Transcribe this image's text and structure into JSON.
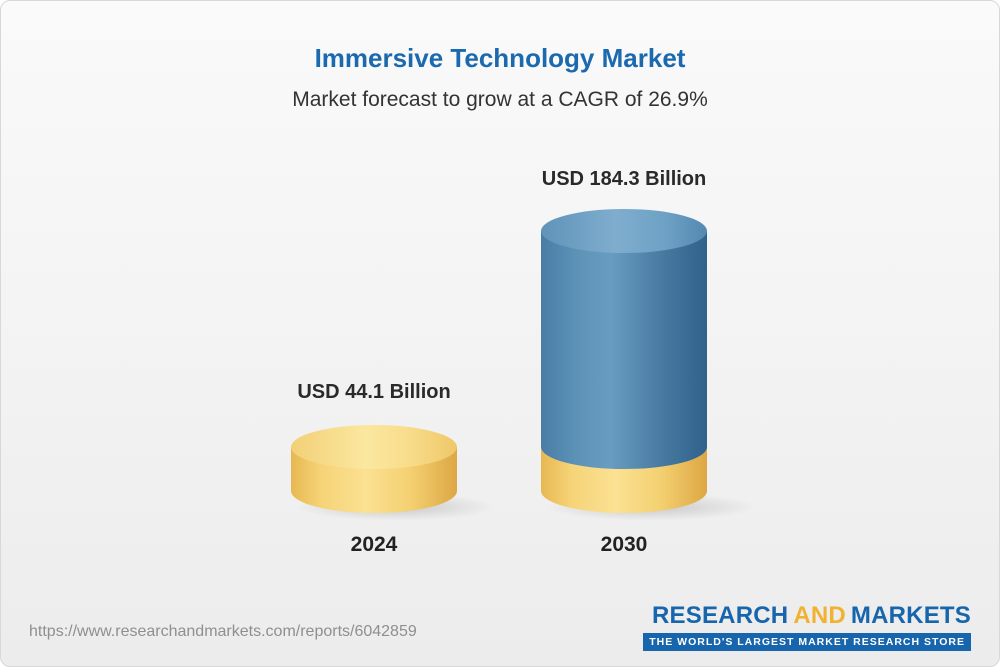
{
  "header": {
    "title": "Immersive Technology Market",
    "subtitle": "Market forecast to grow at a CAGR of 26.9%"
  },
  "chart_data": {
    "type": "bar",
    "style": "3d-cylinder",
    "categories": [
      "2024",
      "2030"
    ],
    "values": [
      44.1,
      184.3
    ],
    "value_labels": [
      "USD 44.1 Billion",
      "USD 184.3 Billion"
    ],
    "unit": "USD Billion",
    "cagr": "26.9%",
    "title": "Immersive Technology Market",
    "subtitle": "Market forecast to grow at a CAGR of 26.9%",
    "ylim": [
      0,
      184.3
    ],
    "grid": false,
    "legend": false,
    "colors": {
      "bar_2024": "#f5cf6d",
      "bar_2030": "#3d749f",
      "bar_2030_base_segment": "#f5cf6d",
      "title": "#1b69ae",
      "labels": "#2a2a2a"
    },
    "notes": "2030 cylinder shows yellow base segment equal to 2024 value with blue growth portion above"
  },
  "footer": {
    "url": "https://www.researchandmarkets.com/reports/6042859",
    "logo": {
      "research": "RESEARCH",
      "and": "AND",
      "markets": "MARKETS",
      "tagline": "THE WORLD'S LARGEST MARKET RESEARCH STORE"
    }
  }
}
